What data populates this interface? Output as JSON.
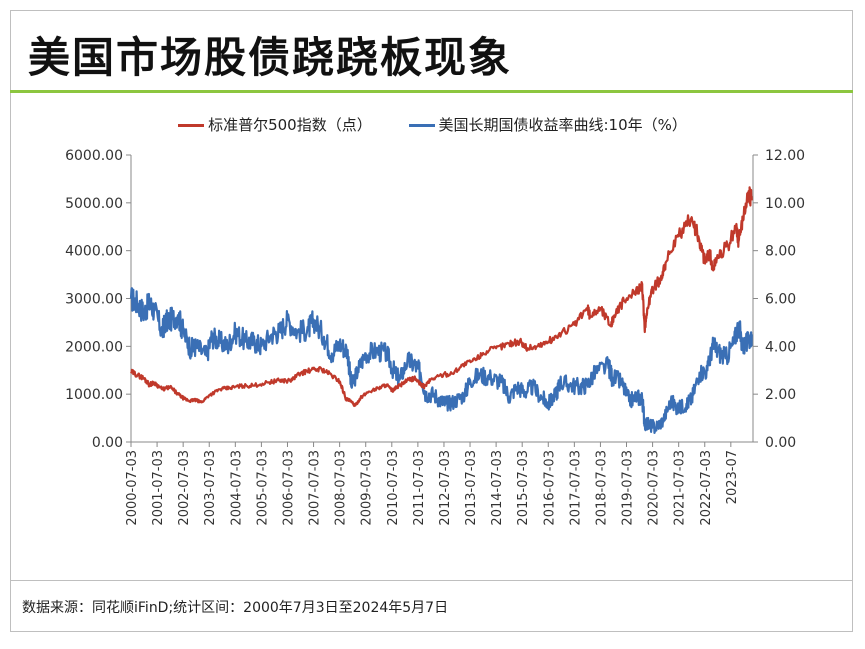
{
  "header": {
    "title": "美国市场股债跷跷板现象"
  },
  "footnote": {
    "text": "数据来源：同花顺iFinD;统计区间：2000年7月3日至2024年5月7日"
  },
  "colors": {
    "accent_rule": "#8cc63f",
    "sp500": "#c0392b",
    "treasury": "#3a6fb5"
  },
  "chart_data": {
    "type": "line",
    "title": "美国市场股债跷跷板现象",
    "legend_position": "top",
    "series": [
      {
        "name": "标准普尔500指数（点）",
        "axis": "left",
        "color": "#c0392b",
        "x": [
          2000.5,
          2000.75,
          2001.0,
          2001.2,
          2001.4,
          2001.7,
          2002.0,
          2002.3,
          2002.55,
          2002.75,
          2002.95,
          2003.2,
          2003.5,
          2003.9,
          2004.3,
          2004.7,
          2005.2,
          2005.8,
          2006.2,
          2006.6,
          2007.0,
          2007.4,
          2007.8,
          2008.2,
          2008.5,
          2008.75,
          2008.9,
          2009.1,
          2009.3,
          2009.6,
          2010.0,
          2010.3,
          2010.5,
          2010.8,
          2011.1,
          2011.4,
          2011.6,
          2011.75,
          2012.0,
          2012.4,
          2012.8,
          2013.2,
          2013.7,
          2014.0,
          2014.5,
          2015.0,
          2015.4,
          2015.7,
          2016.1,
          2016.5,
          2017.0,
          2017.5,
          2018.0,
          2018.1,
          2018.5,
          2018.9,
          2019.0,
          2019.4,
          2019.8,
          2020.1,
          2020.2,
          2020.3,
          2020.5,
          2020.8,
          2021.0,
          2021.5,
          2022.0,
          2022.3,
          2022.5,
          2022.7,
          2022.8,
          2023.0,
          2023.4,
          2023.7,
          2023.8,
          2024.0,
          2024.2,
          2024.3
        ],
        "values": [
          1470,
          1400,
          1330,
          1200,
          1240,
          1100,
          1150,
          1000,
          900,
          860,
          880,
          830,
          980,
          1100,
          1130,
          1170,
          1180,
          1250,
          1290,
          1280,
          1440,
          1500,
          1530,
          1390,
          1270,
          900,
          860,
          760,
          920,
          1050,
          1130,
          1200,
          1070,
          1180,
          1290,
          1330,
          1200,
          1160,
          1310,
          1400,
          1430,
          1600,
          1720,
          1860,
          1960,
          2060,
          2100,
          1960,
          2000,
          2100,
          2270,
          2450,
          2800,
          2640,
          2800,
          2450,
          2600,
          2950,
          3100,
          3300,
          2300,
          2800,
          3200,
          3400,
          3750,
          4300,
          4700,
          4200,
          3800,
          3950,
          3600,
          3900,
          4100,
          4500,
          4200,
          4800,
          5200,
          5050
        ]
      },
      {
        "name": "美国长期国债收益率曲线:10年（%）",
        "axis": "right",
        "color": "#3a6fb5",
        "x": [
          2000.5,
          2000.75,
          2001.0,
          2001.2,
          2001.4,
          2001.7,
          2001.8,
          2002.0,
          2002.3,
          2002.5,
          2002.8,
          2003.0,
          2003.4,
          2003.6,
          2003.9,
          2004.2,
          2004.5,
          2004.9,
          2005.2,
          2005.5,
          2005.9,
          2006.2,
          2006.5,
          2006.9,
          2007.3,
          2007.5,
          2007.9,
          2008.2,
          2008.5,
          2008.8,
          2008.95,
          2009.2,
          2009.5,
          2009.9,
          2010.3,
          2010.6,
          2010.8,
          2011.1,
          2011.4,
          2011.6,
          2011.8,
          2012.1,
          2012.4,
          2012.6,
          2012.9,
          2013.3,
          2013.5,
          2013.9,
          2014.3,
          2014.7,
          2015.0,
          2015.3,
          2015.6,
          2015.9,
          2016.3,
          2016.5,
          2016.8,
          2016.95,
          2017.3,
          2017.7,
          2018.0,
          2018.3,
          2018.8,
          2018.95,
          2019.3,
          2019.6,
          2019.9,
          2020.1,
          2020.2,
          2020.4,
          2020.6,
          2020.9,
          2021.2,
          2021.5,
          2021.8,
          2022.0,
          2022.3,
          2022.6,
          2022.8,
          2023.0,
          2023.3,
          2023.6,
          2023.8,
          2023.95,
          2024.2,
          2024.3
        ],
        "values": [
          6.0,
          5.8,
          5.4,
          5.8,
          5.5,
          4.6,
          5.0,
          5.1,
          5.3,
          4.6,
          3.9,
          4.0,
          3.6,
          4.4,
          4.2,
          4.0,
          4.6,
          4.2,
          4.2,
          4.0,
          4.5,
          4.6,
          5.1,
          4.6,
          4.7,
          5.1,
          4.4,
          3.7,
          4.1,
          3.8,
          2.3,
          3.0,
          3.7,
          3.8,
          3.7,
          2.9,
          2.6,
          3.4,
          3.2,
          2.9,
          2.0,
          2.0,
          1.7,
          1.6,
          1.7,
          2.0,
          2.6,
          2.8,
          2.7,
          2.5,
          1.9,
          2.3,
          2.1,
          2.3,
          1.8,
          1.6,
          2.0,
          2.5,
          2.4,
          2.3,
          2.4,
          2.9,
          3.2,
          2.7,
          2.5,
          1.7,
          1.9,
          1.8,
          0.8,
          0.7,
          0.6,
          0.9,
          1.7,
          1.4,
          1.6,
          1.8,
          2.9,
          3.0,
          4.0,
          3.8,
          3.5,
          4.1,
          4.9,
          4.0,
          4.2,
          4.5
        ]
      }
    ],
    "x_ticks": [
      "2000-07-03",
      "2001-07-03",
      "2002-07-03",
      "2003-07-03",
      "2004-07-03",
      "2005-07-03",
      "2006-07-03",
      "2007-07-03",
      "2008-07-03",
      "2009-07-03",
      "2010-07-03",
      "2011-07-03",
      "2012-07-03",
      "2013-07-03",
      "2014-07-03",
      "2015-07-03",
      "2016-07-03",
      "2017-07-03",
      "2018-07-03",
      "2019-07-03",
      "2020-07-03",
      "2021-07-03",
      "2022-07-03",
      "2023-07"
    ],
    "y_left": {
      "ticks": [
        "6000.00",
        "5000.00",
        "4000.00",
        "3000.00",
        "2000.00",
        "1000.00",
        "0.00"
      ],
      "ylim": [
        0,
        6000
      ]
    },
    "y_right": {
      "ticks": [
        "12.00",
        "10.00",
        "8.00",
        "6.00",
        "4.00",
        "2.00",
        "0.00"
      ],
      "ylim": [
        0,
        12
      ]
    },
    "x_range": [
      2000.5,
      2024.35
    ],
    "grid": false
  }
}
